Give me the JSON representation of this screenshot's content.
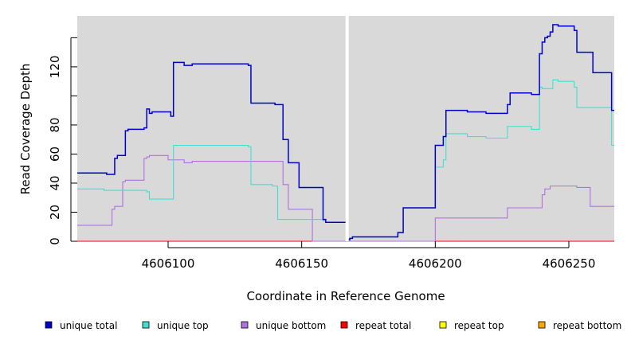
{
  "chart_data": {
    "type": "line",
    "step": true,
    "xlabel": "Coordinate in Reference Genome",
    "ylabel": "Read Coverage Depth",
    "xlim": [
      4606066,
      4606267
    ],
    "ylim": [
      0,
      155
    ],
    "x_ticks": [
      4606100,
      4606150,
      4606200,
      4606250
    ],
    "y_ticks": [
      0,
      20,
      40,
      60,
      80,
      100,
      120,
      140
    ],
    "y_tick_labels": [
      "0",
      "20",
      "40",
      "60",
      "80",
      "",
      "120",
      ""
    ],
    "background": "#d9d9d9",
    "gap_marker_x": 4606167,
    "legend_position": "bottom",
    "series": [
      {
        "name": "unique total",
        "color": "#0000cc",
        "points": [
          [
            4606066,
            47
          ],
          [
            4606077,
            46
          ],
          [
            4606080,
            57
          ],
          [
            4606081,
            59
          ],
          [
            4606084,
            76
          ],
          [
            4606085,
            77
          ],
          [
            4606091,
            78
          ],
          [
            4606092,
            91
          ],
          [
            4606093,
            88
          ],
          [
            4606094,
            89
          ],
          [
            4606101,
            86
          ],
          [
            4606102,
            123
          ],
          [
            4606106,
            121
          ],
          [
            4606109,
            122
          ],
          [
            4606130,
            121
          ],
          [
            4606131,
            95
          ],
          [
            4606140,
            94
          ],
          [
            4606143,
            70
          ],
          [
            4606145,
            54
          ],
          [
            4606149,
            37
          ],
          [
            4606158,
            15
          ],
          [
            4606159,
            13
          ],
          [
            4606167,
            1
          ],
          [
            4606168,
            2
          ],
          [
            4606169,
            3
          ],
          [
            4606186,
            6
          ],
          [
            4606188,
            23
          ],
          [
            4606200,
            66
          ],
          [
            4606203,
            72
          ],
          [
            4606204,
            90
          ],
          [
            4606212,
            89
          ],
          [
            4606219,
            88
          ],
          [
            4606227,
            94
          ],
          [
            4606228,
            102
          ],
          [
            4606236,
            101
          ],
          [
            4606239,
            129
          ],
          [
            4606240,
            137
          ],
          [
            4606241,
            140
          ],
          [
            4606242,
            141
          ],
          [
            4606243,
            144
          ],
          [
            4606244,
            149
          ],
          [
            4606246,
            148
          ],
          [
            4606252,
            145
          ],
          [
            4606253,
            130
          ],
          [
            4606259,
            116
          ],
          [
            4606266,
            90
          ],
          [
            4606267,
            90
          ]
        ]
      },
      {
        "name": "unique top",
        "color": "#40e0d0",
        "points": [
          [
            4606066,
            36
          ],
          [
            4606076,
            35
          ],
          [
            4606092,
            34
          ],
          [
            4606093,
            29
          ],
          [
            4606102,
            66
          ],
          [
            4606130,
            65
          ],
          [
            4606131,
            39
          ],
          [
            4606139,
            38
          ],
          [
            4606141,
            15
          ],
          [
            4606158,
            14
          ],
          [
            4606159,
            13
          ],
          [
            4606167,
            1
          ],
          [
            4606168,
            2
          ],
          [
            4606169,
            3
          ],
          [
            4606186,
            6
          ],
          [
            4606188,
            23
          ],
          [
            4606200,
            51
          ],
          [
            4606203,
            56
          ],
          [
            4606204,
            74
          ],
          [
            4606212,
            72
          ],
          [
            4606219,
            71
          ],
          [
            4606227,
            79
          ],
          [
            4606236,
            77
          ],
          [
            4606239,
            106
          ],
          [
            4606240,
            105
          ],
          [
            4606244,
            111
          ],
          [
            4606246,
            110
          ],
          [
            4606252,
            106
          ],
          [
            4606253,
            92
          ],
          [
            4606266,
            66
          ],
          [
            4606267,
            66
          ]
        ]
      },
      {
        "name": "unique bottom",
        "color": "#b070e0",
        "points": [
          [
            4606066,
            11
          ],
          [
            4606079,
            22
          ],
          [
            4606080,
            24
          ],
          [
            4606083,
            41
          ],
          [
            4606084,
            42
          ],
          [
            4606091,
            57
          ],
          [
            4606092,
            58
          ],
          [
            4606093,
            59
          ],
          [
            4606100,
            56
          ],
          [
            4606106,
            54
          ],
          [
            4606109,
            55
          ],
          [
            4606143,
            39
          ],
          [
            4606145,
            22
          ],
          [
            4606154,
            0
          ],
          [
            4606200,
            16
          ],
          [
            4606227,
            23
          ],
          [
            4606240,
            32
          ],
          [
            4606241,
            36
          ],
          [
            4606243,
            38
          ],
          [
            4606253,
            37
          ],
          [
            4606258,
            24
          ],
          [
            4606267,
            24
          ]
        ]
      },
      {
        "name": "repeat total",
        "color": "#ff0000",
        "points": [
          [
            4606066,
            0
          ],
          [
            4606267,
            0
          ]
        ]
      },
      {
        "name": "repeat top",
        "color": "#ffff00",
        "points": [
          [
            4606066,
            0
          ],
          [
            4606267,
            0
          ]
        ]
      },
      {
        "name": "repeat bottom",
        "color": "#ffa500",
        "points": [
          [
            4606066,
            0
          ],
          [
            4606267,
            0
          ]
        ]
      }
    ]
  }
}
